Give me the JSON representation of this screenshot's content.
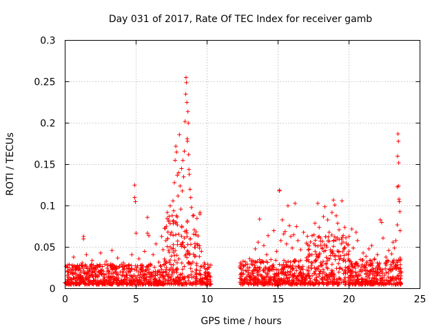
{
  "chart_data": {
    "type": "scatter",
    "title": "Day 031 of 2017, Rate Of TEC Index for receiver gamb",
    "xlabel": "GPS time / hours",
    "ylabel": "ROTI / TECUs",
    "xlim": [
      0,
      25
    ],
    "ylim": [
      0,
      0.3
    ],
    "x_ticks": [
      0,
      5,
      10,
      15,
      20,
      25
    ],
    "x_tick_labels": [
      "0",
      "5",
      "10",
      "15",
      "20",
      "25"
    ],
    "y_ticks": [
      0,
      0.05,
      0.1,
      0.15,
      0.2,
      0.25,
      0.3
    ],
    "y_tick_labels": [
      "0",
      "0.05",
      "0.1",
      "0.15",
      "0.2",
      "0.25",
      "0.3"
    ],
    "grid": true,
    "marker": "+",
    "color": "#ff0000",
    "series": [
      {
        "name": "ROTI",
        "points": [
          [
            0.2,
            0.021
          ],
          [
            0.3,
            0.029
          ],
          [
            0.5,
            0.018
          ],
          [
            0.6,
            0.038
          ],
          [
            0.8,
            0.024
          ],
          [
            1.0,
            0.016
          ],
          [
            1.2,
            0.031
          ],
          [
            1.3,
            0.063
          ],
          [
            1.3,
            0.06
          ],
          [
            1.5,
            0.041
          ],
          [
            1.7,
            0.022
          ],
          [
            1.9,
            0.034
          ],
          [
            2.1,
            0.019
          ],
          [
            2.3,
            0.027
          ],
          [
            2.5,
            0.043
          ],
          [
            2.7,
            0.021
          ],
          [
            2.9,
            0.033
          ],
          [
            3.1,
            0.018
          ],
          [
            3.3,
            0.046
          ],
          [
            3.5,
            0.024
          ],
          [
            3.7,
            0.037
          ],
          [
            3.9,
            0.02
          ],
          [
            4.1,
            0.031
          ],
          [
            4.3,
            0.016
          ],
          [
            4.5,
            0.028
          ],
          [
            4.7,
            0.041
          ],
          [
            4.9,
            0.125
          ],
          [
            4.9,
            0.11
          ],
          [
            4.95,
            0.105
          ],
          [
            5.0,
            0.067
          ],
          [
            5.2,
            0.036
          ],
          [
            5.4,
            0.022
          ],
          [
            5.6,
            0.045
          ],
          [
            5.8,
            0.086
          ],
          [
            5.8,
            0.067
          ],
          [
            5.9,
            0.064
          ],
          [
            6.0,
            0.029
          ],
          [
            6.2,
            0.041
          ],
          [
            6.4,
            0.054
          ],
          [
            6.6,
            0.032
          ],
          [
            6.8,
            0.063
          ],
          [
            6.9,
            0.047
          ],
          [
            7.0,
            0.073
          ],
          [
            7.1,
            0.058
          ],
          [
            7.2,
            0.092
          ],
          [
            7.3,
            0.081
          ],
          [
            7.4,
            0.1
          ],
          [
            7.5,
            0.068
          ],
          [
            7.6,
            0.106
          ],
          [
            7.65,
            0.094
          ],
          [
            7.7,
            0.128
          ],
          [
            7.75,
            0.155
          ],
          [
            7.8,
            0.172
          ],
          [
            7.85,
            0.165
          ],
          [
            7.9,
            0.137
          ],
          [
            7.95,
            0.112
          ],
          [
            8.0,
            0.14
          ],
          [
            8.05,
            0.186
          ],
          [
            8.1,
            0.124
          ],
          [
            8.15,
            0.096
          ],
          [
            8.2,
            0.145
          ],
          [
            8.25,
            0.118
          ],
          [
            8.3,
            0.155
          ],
          [
            8.35,
            0.135
          ],
          [
            8.4,
            0.166
          ],
          [
            8.45,
            0.202
          ],
          [
            8.5,
            0.235
          ],
          [
            8.52,
            0.255
          ],
          [
            8.55,
            0.249
          ],
          [
            8.58,
            0.225
          ],
          [
            8.6,
            0.181
          ],
          [
            8.62,
            0.178
          ],
          [
            8.65,
            0.214
          ],
          [
            8.68,
            0.2
          ],
          [
            8.7,
            0.162
          ],
          [
            8.72,
            0.144
          ],
          [
            8.75,
            0.138
          ],
          [
            8.8,
            0.12
          ],
          [
            8.85,
            0.11
          ],
          [
            8.9,
            0.098
          ],
          [
            9.0,
            0.088
          ],
          [
            9.1,
            0.071
          ],
          [
            9.2,
            0.065
          ],
          [
            9.3,
            0.054
          ],
          [
            9.5,
            0.092
          ],
          [
            9.5,
            0.09
          ],
          [
            9.6,
            0.045
          ],
          [
            9.8,
            0.031
          ],
          [
            10.0,
            0.024
          ],
          [
            10.1,
            0.018
          ],
          [
            12.4,
            0.018
          ],
          [
            12.6,
            0.027
          ],
          [
            12.8,
            0.021
          ],
          [
            13.0,
            0.036
          ],
          [
            13.2,
            0.029
          ],
          [
            13.4,
            0.048
          ],
          [
            13.6,
            0.056
          ],
          [
            13.7,
            0.084
          ],
          [
            13.8,
            0.031
          ],
          [
            14.0,
            0.052
          ],
          [
            14.2,
            0.041
          ],
          [
            14.3,
            0.064
          ],
          [
            14.5,
            0.035
          ],
          [
            14.7,
            0.07
          ],
          [
            14.9,
            0.045
          ],
          [
            15.1,
            0.119
          ],
          [
            15.1,
            0.118
          ],
          [
            15.2,
            0.058
          ],
          [
            15.3,
            0.083
          ],
          [
            15.4,
            0.066
          ],
          [
            15.5,
            0.069
          ],
          [
            15.6,
            0.054
          ],
          [
            15.7,
            0.1
          ],
          [
            15.8,
            0.076
          ],
          [
            15.9,
            0.063
          ],
          [
            16.0,
            0.049
          ],
          [
            16.1,
            0.065
          ],
          [
            16.2,
            0.103
          ],
          [
            16.3,
            0.075
          ],
          [
            16.4,
            0.058
          ],
          [
            16.6,
            0.047
          ],
          [
            16.8,
            0.068
          ],
          [
            17.0,
            0.055
          ],
          [
            17.2,
            0.042
          ],
          [
            17.4,
            0.064
          ],
          [
            17.6,
            0.079
          ],
          [
            17.8,
            0.103
          ],
          [
            17.9,
            0.074
          ],
          [
            18.0,
            0.061
          ],
          [
            18.2,
            0.087
          ],
          [
            18.3,
            0.099
          ],
          [
            18.5,
            0.083
          ],
          [
            18.6,
            0.068
          ],
          [
            18.8,
            0.092
          ],
          [
            18.9,
            0.107
          ],
          [
            19.0,
            0.101
          ],
          [
            19.1,
            0.088
          ],
          [
            19.2,
            0.079
          ],
          [
            19.3,
            0.071
          ],
          [
            19.5,
            0.106
          ],
          [
            19.7,
            0.074
          ],
          [
            19.8,
            0.055
          ],
          [
            20.0,
            0.063
          ],
          [
            20.2,
            0.072
          ],
          [
            20.3,
            0.049
          ],
          [
            20.5,
            0.068
          ],
          [
            20.6,
            0.058
          ],
          [
            20.8,
            0.035
          ],
          [
            21.0,
            0.043
          ],
          [
            21.2,
            0.039
          ],
          [
            21.4,
            0.048
          ],
          [
            21.6,
            0.052
          ],
          [
            21.8,
            0.036
          ],
          [
            22.0,
            0.041
          ],
          [
            22.2,
            0.083
          ],
          [
            22.3,
            0.08
          ],
          [
            22.4,
            0.061
          ],
          [
            22.6,
            0.038
          ],
          [
            22.8,
            0.046
          ],
          [
            23.0,
            0.042
          ],
          [
            23.1,
            0.056
          ],
          [
            23.2,
            0.049
          ],
          [
            23.3,
            0.058
          ],
          [
            23.4,
            0.077
          ],
          [
            23.4,
            0.123
          ],
          [
            23.42,
            0.16
          ],
          [
            23.45,
            0.187
          ],
          [
            23.48,
            0.178
          ],
          [
            23.5,
            0.152
          ],
          [
            23.5,
            0.124
          ],
          [
            23.52,
            0.108
          ],
          [
            23.55,
            0.105
          ],
          [
            23.58,
            0.093
          ],
          [
            23.6,
            0.07
          ],
          [
            23.6,
            0.037
          ],
          [
            23.62,
            0.029
          ]
        ],
        "dense_clusters": [
          {
            "x_range": [
              0.0,
              7.0
            ],
            "y_range": [
              0.005,
              0.03
            ],
            "density": 1
          },
          {
            "x_range": [
              7.0,
              9.5
            ],
            "y_range": [
              0.005,
              0.09
            ],
            "density": 1
          },
          {
            "x_range": [
              9.5,
              10.3
            ],
            "y_range": [
              0.005,
              0.03
            ],
            "density": 1
          },
          {
            "x_range": [
              12.3,
              17.0
            ],
            "y_range": [
              0.005,
              0.035
            ],
            "density": 1
          },
          {
            "x_range": [
              17.0,
              20.0
            ],
            "y_range": [
              0.005,
              0.065
            ],
            "density": 1
          },
          {
            "x_range": [
              20.0,
              23.7
            ],
            "y_range": [
              0.005,
              0.035
            ],
            "density": 1
          }
        ]
      }
    ]
  }
}
